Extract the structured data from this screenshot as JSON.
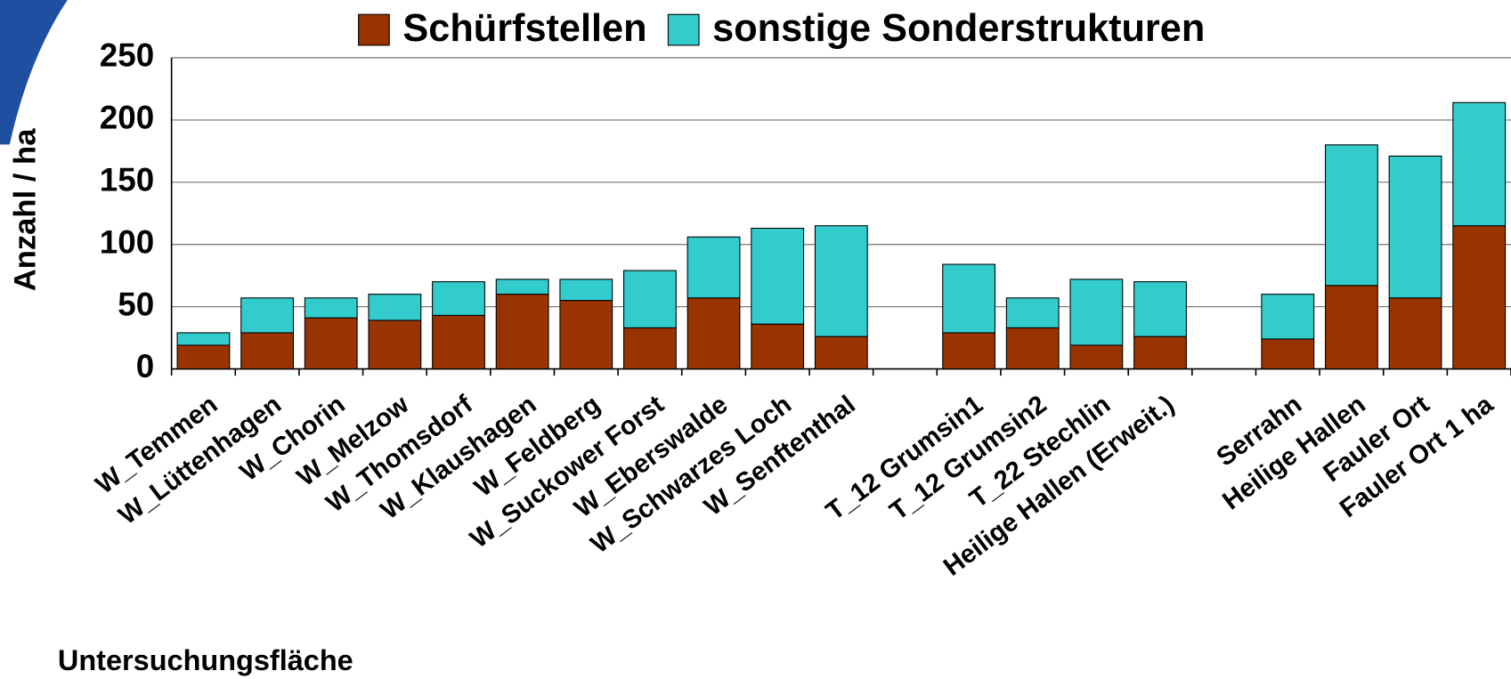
{
  "chart_data": {
    "type": "stacked_bar",
    "y_label": "Anzahl / ha",
    "x_label": "Untersuchungsfläche",
    "categories": [
      "W_Temmen",
      "W_Lüttenhagen",
      "W_Chorin",
      "W_Melzow",
      "W_Thomsdorf",
      "W_Klaushagen",
      "W_Feldberg",
      "W_Suckower Forst",
      "W_Eberswalde",
      "W_Schwarzes Loch",
      "W_Senftenthal",
      null,
      "T_12 Grumsin1",
      "T_12 Grumsin2",
      "T_22 Stechlin",
      "Heilige Hallen (Erweit.)",
      null,
      "Serrahn",
      "Heilige Hallen",
      "Fauler Ort",
      "Fauler Ort 1 ha"
    ],
    "series": [
      {
        "name": "Schürfstellen",
        "color": "#993300",
        "values": [
          19,
          29,
          41,
          39,
          43,
          60,
          55,
          33,
          57,
          36,
          26,
          null,
          29,
          33,
          19,
          26,
          null,
          24,
          67,
          57,
          115
        ]
      },
      {
        "name": "sonstige Sonderstrukturen",
        "color": "#33cccc",
        "values": [
          10,
          28,
          16,
          21,
          27,
          12,
          17,
          46,
          49,
          77,
          89,
          null,
          55,
          24,
          53,
          44,
          null,
          36,
          113,
          114,
          99
        ]
      }
    ],
    "ylim": [
      0,
      250
    ],
    "yticks": [
      0,
      50,
      100,
      150,
      200,
      250
    ],
    "grid": true,
    "legend": "top"
  }
}
